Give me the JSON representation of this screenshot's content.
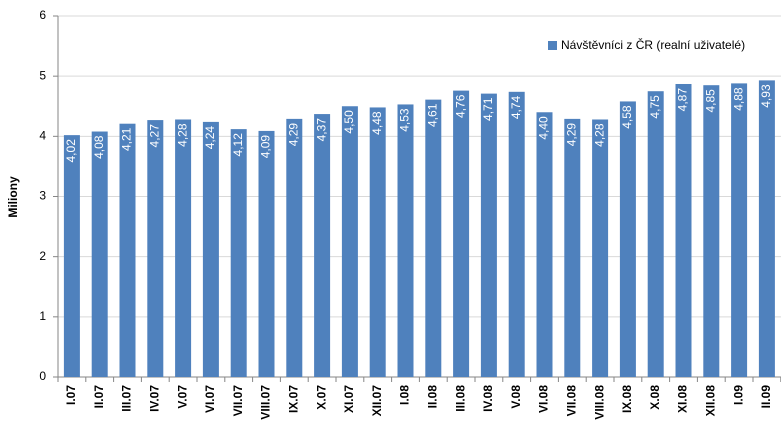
{
  "chart_data": {
    "type": "bar",
    "y_label": "Miliony",
    "categories": [
      "I.07",
      "II.07",
      "III.07",
      "IV.07",
      "V.07",
      "VI.07",
      "VII.07",
      "VIII.07",
      "IX.07",
      "X.07",
      "XI.07",
      "XII.07",
      "I.08",
      "II.08",
      "III.08",
      "IV.08",
      "V.08",
      "VI.08",
      "VII.08",
      "VIII.08",
      "IX.08",
      "X.08",
      "XI.08",
      "XII.08",
      "I.09",
      "II.09"
    ],
    "series": [
      {
        "name": "Návštěvníci z ČR (realní uživatelé)",
        "color": "#4f81bd",
        "values": [
          4.02,
          4.08,
          4.21,
          4.27,
          4.28,
          4.24,
          4.12,
          4.09,
          4.29,
          4.37,
          4.5,
          4.48,
          4.53,
          4.61,
          4.76,
          4.71,
          4.74,
          4.4,
          4.29,
          4.28,
          4.58,
          4.75,
          4.87,
          4.85,
          4.88,
          4.93
        ],
        "value_labels": [
          "4,02",
          "4,08",
          "4,21",
          "4,27",
          "4,28",
          "4,24",
          "4,12",
          "4,09",
          "4,29",
          "4,37",
          "4,50",
          "4,48",
          "4,53",
          "4,61",
          "4,76",
          "4,71",
          "4,74",
          "4,40",
          "4,29",
          "4,28",
          "4,58",
          "4,75",
          "4,87",
          "4,85",
          "4,88",
          "4,93"
        ]
      }
    ],
    "ylim": [
      0,
      6
    ],
    "yticks": [
      0,
      1,
      2,
      3,
      4,
      5,
      6
    ],
    "grid": true,
    "legend": "top-right"
  }
}
